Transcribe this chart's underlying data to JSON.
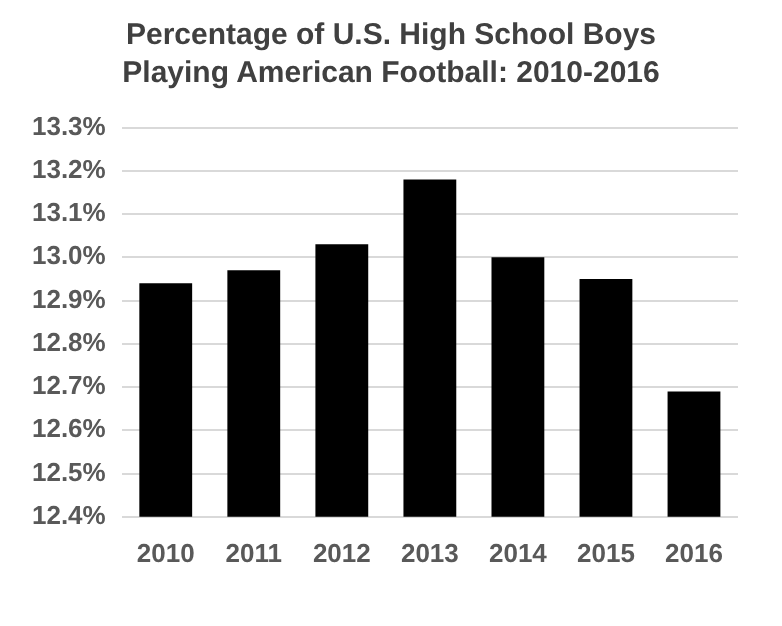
{
  "chart_data": {
    "type": "bar",
    "title": "Percentage of U.S. High School Boys Playing American Football: 2010-2016",
    "categories": [
      "2010",
      "2011",
      "2012",
      "2013",
      "2014",
      "2015",
      "2016"
    ],
    "values": [
      12.94,
      12.97,
      13.03,
      13.18,
      13.0,
      12.95,
      12.69
    ],
    "color": "#000000",
    "ylim": [
      12.4,
      13.3
    ],
    "yticks": [
      {
        "value": 12.4,
        "label": "12.4%"
      },
      {
        "value": 12.5,
        "label": "12.5%"
      },
      {
        "value": 12.6,
        "label": "12.6%"
      },
      {
        "value": 12.7,
        "label": "12.7%"
      },
      {
        "value": 12.8,
        "label": "12.8%"
      },
      {
        "value": 12.9,
        "label": "12.9%"
      },
      {
        "value": 13.0,
        "label": "13.0%"
      },
      {
        "value": 13.1,
        "label": "13.1%"
      },
      {
        "value": 13.2,
        "label": "13.2%"
      },
      {
        "value": 13.3,
        "label": "13.3%"
      }
    ],
    "grid": "y"
  }
}
